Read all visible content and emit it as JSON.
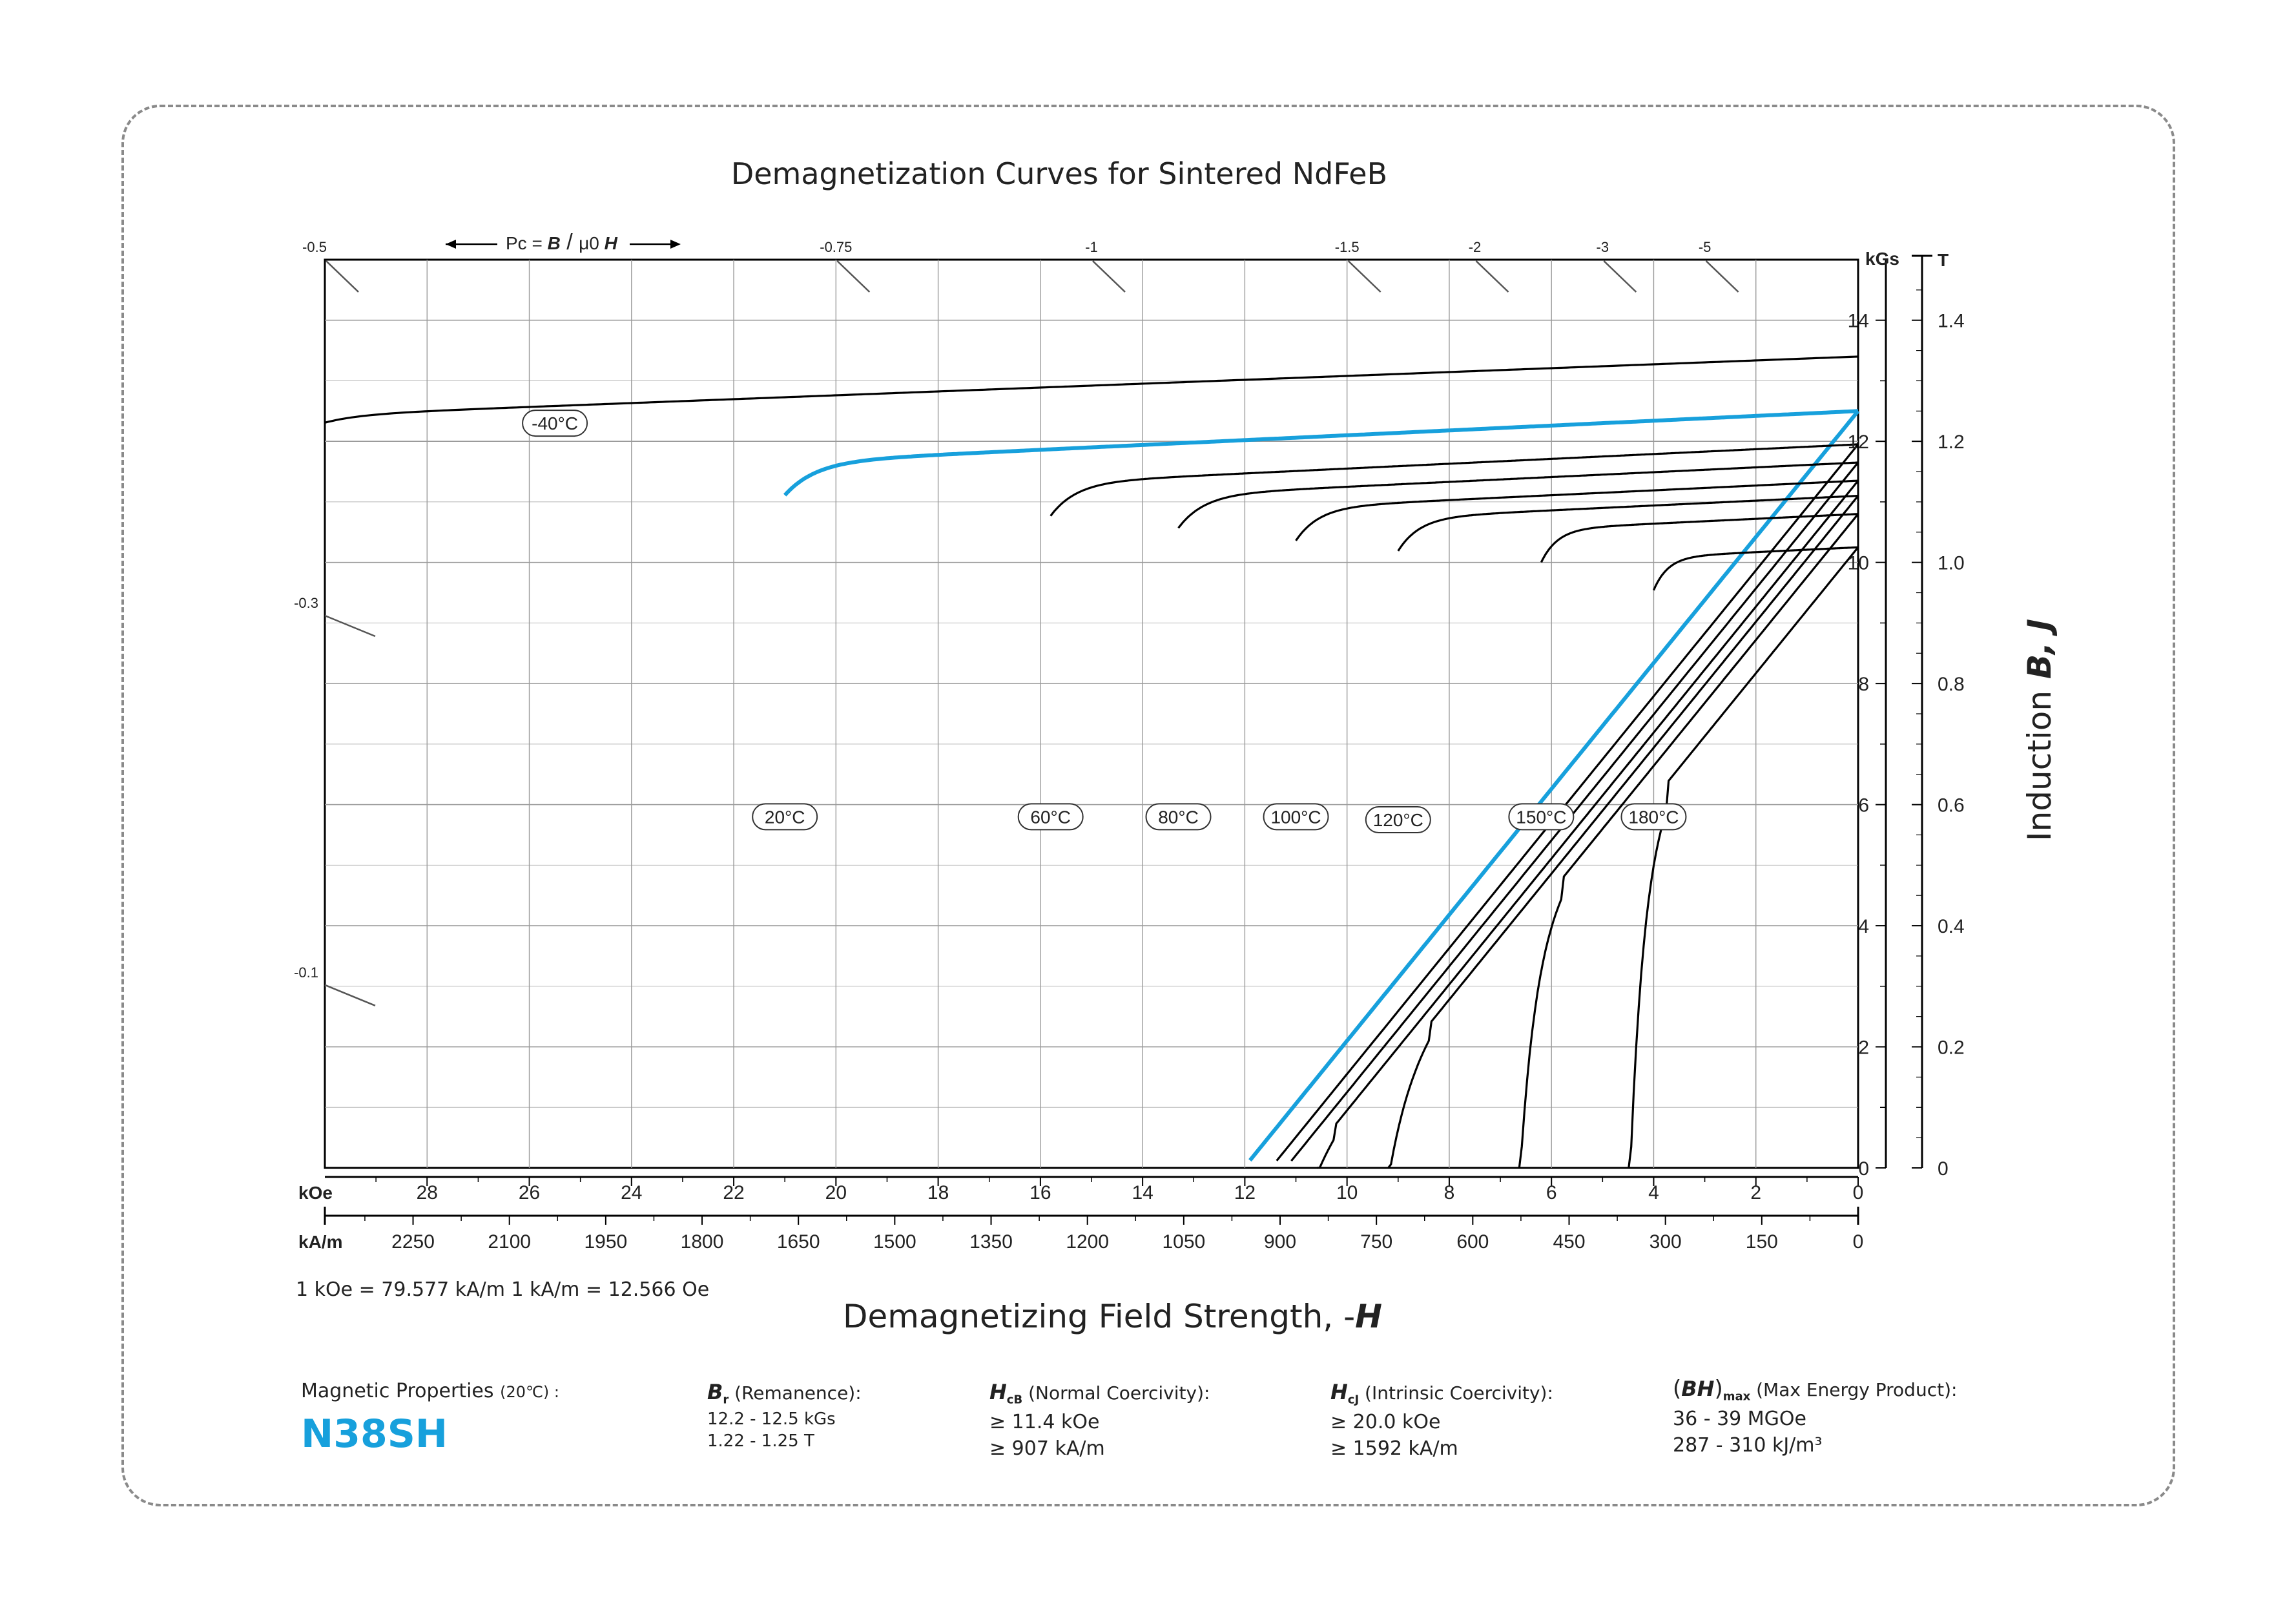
{
  "colors": {
    "highlight": "#17a0dc",
    "curve": "#000000",
    "grid": "#9a9a9a",
    "border": "#8a8a8a"
  },
  "chart_data": {
    "type": "line",
    "title": "Demagnetization Curves for Sintered NdFeB",
    "xlabel": "Demagnetizing Field Strength, -",
    "xlabel_symbol": "H",
    "ylabel": "Induction",
    "ylabel_symbols": "B, J",
    "x_unit": "kOe",
    "x_unit_secondary": "kA/m",
    "y_unit": "kGs",
    "y_unit_secondary": "T",
    "xlim": [
      30,
      0
    ],
    "ylim": [
      0,
      15
    ],
    "x_ticks": [
      "28",
      "26",
      "24",
      "22",
      "20",
      "18",
      "16",
      "14",
      "12",
      "10",
      "8",
      "6",
      "4",
      "2",
      "0"
    ],
    "x_ticks_secondary": [
      "2250",
      "2100",
      "1950",
      "1800",
      "1650",
      "1500",
      "1350",
      "1200",
      "1050",
      "900",
      "750",
      "600",
      "450",
      "300",
      "150",
      "0"
    ],
    "y_ticks": [
      "0",
      "2",
      "4",
      "6",
      "8",
      "10",
      "12",
      "14"
    ],
    "y_ticks_secondary": [
      "0",
      "0.2",
      "0.4",
      "0.6",
      "0.8",
      "1.0",
      "1.2",
      "1.4"
    ],
    "conversion_note": "1 kOe = 79.577 kA/m   1 kA/m = 12.566 Oe",
    "grid": true,
    "permeance": {
      "label_prefix": "Pc = ",
      "label_b": "B",
      "label_mu": "μ0",
      "label_h": "H",
      "top_ticks": [
        {
          "label": "-0.5",
          "x": 30.0
        },
        {
          "label": "-0.75",
          "x": 20.0
        },
        {
          "label": "-1",
          "x": 15.0
        },
        {
          "label": "-1.5",
          "x": 10.0
        },
        {
          "label": "-2",
          "x": 7.5
        },
        {
          "label": "-3",
          "x": 5.0
        },
        {
          "label": "-5",
          "x": 3.0
        }
      ],
      "left_ticks": [
        {
          "label": "-0.3",
          "y": 9.1
        },
        {
          "label": "-0.1",
          "y": 3.0
        }
      ]
    },
    "series": [
      {
        "name": "-40°C",
        "highlight": false,
        "br": 13.4,
        "slope": 0.032,
        "hcj": 31.0,
        "k": 0.7,
        "label_at": [
          25.5,
          12.3
        ]
      },
      {
        "name": "20°C",
        "highlight": true,
        "br": 12.5,
        "slope": 0.04,
        "hcj": 21.0,
        "k": 0.6,
        "label_at": [
          21.0,
          5.8
        ]
      },
      {
        "name": "60°C",
        "highlight": false,
        "br": 11.95,
        "slope": 0.04,
        "hcj": 15.8,
        "k": 0.5,
        "label_at": [
          15.8,
          5.8
        ]
      },
      {
        "name": "80°C",
        "highlight": false,
        "br": 11.65,
        "slope": 0.04,
        "hcj": 13.3,
        "k": 0.5,
        "label_at": [
          13.3,
          5.8
        ]
      },
      {
        "name": "100°C",
        "highlight": false,
        "br": 11.35,
        "slope": 0.04,
        "hcj": 11.0,
        "k": 0.45,
        "label_at": [
          11.0,
          5.8
        ]
      },
      {
        "name": "120°C",
        "highlight": false,
        "br": 11.1,
        "slope": 0.04,
        "hcj": 9.0,
        "k": 0.42,
        "label_at": [
          9.0,
          5.75
        ]
      },
      {
        "name": "150°C",
        "highlight": false,
        "br": 10.8,
        "slope": 0.04,
        "hcj": 6.2,
        "k": 0.32,
        "label_at": [
          6.2,
          5.8
        ]
      },
      {
        "name": "180°C",
        "highlight": false,
        "br": 10.25,
        "slope": 0.04,
        "hcj": 4.0,
        "k": 0.28,
        "label_at": [
          4.0,
          5.8
        ]
      }
    ]
  },
  "properties": {
    "heading": "Magnetic Properties",
    "heading_temp": "(20℃) :",
    "grade": "N38SH",
    "br": {
      "symbol": "B",
      "sub": "r",
      "desc": " (Remanence):",
      "line1": "12.2 - 12.5 kGs",
      "line2": "1.22 - 1.25 T"
    },
    "hcb": {
      "symbol": "H",
      "sub": "cB",
      "desc": " (Normal Coercivity):",
      "line1": "≥ 11.4 kOe",
      "line2": "≥ 907 kA/m"
    },
    "hcj": {
      "symbol": "H",
      "sub": "cJ",
      "desc": " (Intrinsic Coercivity):",
      "line1": "≥ 20.0 kOe",
      "line2": "≥ 1592 kA/m"
    },
    "bh": {
      "symbol": "BH",
      "sub": "max",
      "desc": " (Max Energy Product):",
      "line1": "36 - 39 MGOe",
      "line2": "287 - 310 kJ/m³"
    }
  }
}
